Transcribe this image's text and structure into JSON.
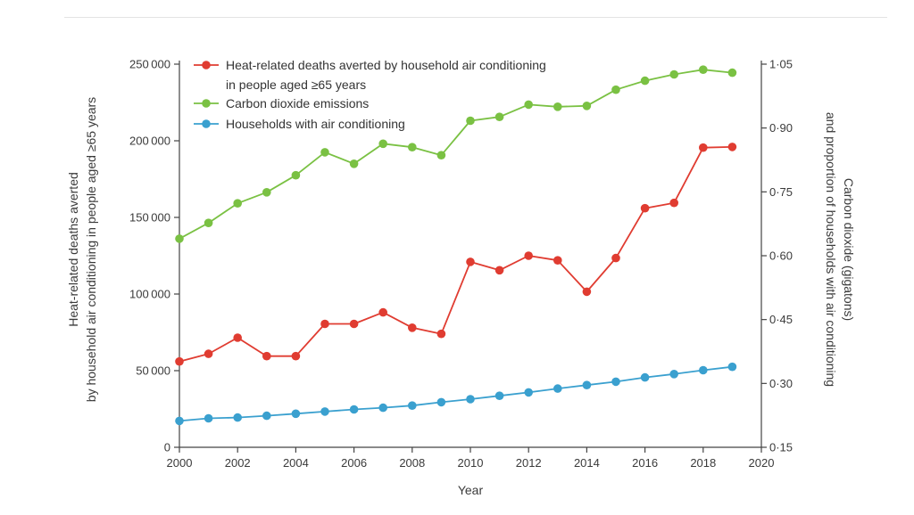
{
  "chart_data": {
    "type": "line",
    "xlabel": "Year",
    "ylabel_left": [
      "Heat-related deaths averted",
      "by household air conditioning in people aged ≥65 years"
    ],
    "ylabel_right": [
      "Carbon dioxide (gigatons)",
      "and proportion of households with air conditioning"
    ],
    "xlim": [
      2000,
      2020
    ],
    "ylim_left": [
      0,
      250000
    ],
    "ylim_right": [
      0.15,
      1.05
    ],
    "x_ticks": [
      2000,
      2002,
      2004,
      2006,
      2008,
      2010,
      2012,
      2014,
      2016,
      2018,
      2020
    ],
    "x_tick_labels": [
      "2000",
      "2002",
      "2004",
      "2006",
      "2008",
      "2010",
      "2012",
      "2014",
      "2016",
      "2018",
      "2020"
    ],
    "left_ticks": [
      0,
      50000,
      100000,
      150000,
      200000,
      250000
    ],
    "left_tick_labels": [
      "0",
      "50 000",
      "100 000",
      "150 000",
      "200 000",
      "250 000"
    ],
    "right_ticks": [
      0.15,
      0.3,
      0.45,
      0.6,
      0.75,
      0.9,
      1.05
    ],
    "right_tick_labels": [
      "0·15",
      "0·30",
      "0·45",
      "0·60",
      "0·75",
      "0·90",
      "1·05"
    ],
    "legend_position": "top-left",
    "grid": false,
    "x": [
      2000,
      2001,
      2002,
      2003,
      2004,
      2005,
      2006,
      2007,
      2008,
      2009,
      2010,
      2011,
      2012,
      2013,
      2014,
      2015,
      2016,
      2017,
      2018,
      2019
    ],
    "series": [
      {
        "name": "Heat-related deaths averted by household air conditioning in people aged ≥65 years",
        "legend_lines": [
          "Heat-related deaths averted by household air conditioning",
          "in people aged ≥65 years"
        ],
        "axis": "left",
        "color": "#e03c31",
        "values": [
          56000,
          61000,
          71500,
          59500,
          59500,
          80500,
          80500,
          88000,
          78000,
          74000,
          121000,
          115500,
          125000,
          122000,
          101500,
          123500,
          156000,
          159500,
          195500,
          196000
        ]
      },
      {
        "name": "Carbon dioxide emissions",
        "legend_lines": [
          "Carbon dioxide emissions"
        ],
        "axis": "right",
        "color": "#7ac143",
        "values": [
          0.64,
          0.677,
          0.723,
          0.749,
          0.789,
          0.843,
          0.816,
          0.863,
          0.855,
          0.836,
          0.917,
          0.926,
          0.955,
          0.95,
          0.952,
          0.99,
          1.011,
          1.026,
          1.037,
          1.03
        ]
      },
      {
        "name": "Households with air conditioning",
        "legend_lines": [
          "Households with air conditioning"
        ],
        "axis": "right",
        "color": "#3aa0cf",
        "values": [
          0.212,
          0.218,
          0.22,
          0.224,
          0.229,
          0.234,
          0.239,
          0.243,
          0.248,
          0.256,
          0.263,
          0.271,
          0.279,
          0.288,
          0.296,
          0.304,
          0.314,
          0.322,
          0.331,
          0.339
        ]
      }
    ]
  }
}
